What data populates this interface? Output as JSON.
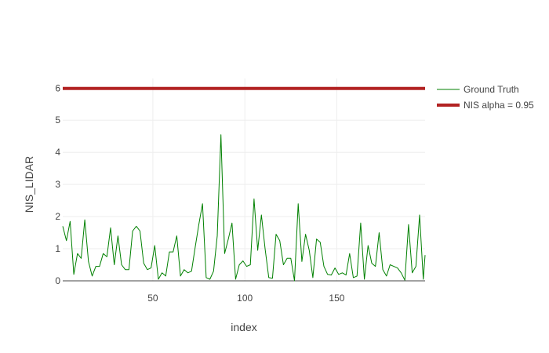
{
  "chart_data": {
    "type": "line",
    "xlabel": "index",
    "ylabel": "NIS_LIDAR",
    "xlim": [
      1,
      198
    ],
    "ylim": [
      0,
      6.3
    ],
    "x_ticks": [
      50,
      100,
      150
    ],
    "y_ticks": [
      0,
      1,
      2,
      3,
      4,
      5,
      6
    ],
    "grid": true,
    "legend_position": "top-right",
    "series": [
      {
        "name": "Ground Truth",
        "color": "#008000",
        "style": "thin-line",
        "x": [
          1,
          3,
          5,
          7,
          9,
          11,
          13,
          15,
          17,
          19,
          21,
          23,
          25,
          27,
          29,
          31,
          33,
          35,
          37,
          39,
          41,
          43,
          45,
          47,
          49,
          51,
          53,
          55,
          57,
          59,
          61,
          63,
          65,
          67,
          69,
          71,
          73,
          75,
          77,
          79,
          81,
          83,
          85,
          87,
          89,
          91,
          93,
          95,
          97,
          99,
          101,
          103,
          105,
          107,
          109,
          111,
          113,
          115,
          117,
          119,
          121,
          123,
          125,
          127,
          129,
          131,
          133,
          135,
          137,
          139,
          141,
          143,
          145,
          147,
          149,
          151,
          153,
          155,
          157,
          159,
          161,
          163,
          165,
          167,
          169,
          171,
          173,
          175,
          177,
          179,
          181,
          183,
          185,
          187,
          189,
          191,
          193,
          195,
          197,
          198
        ],
        "values": [
          1.7,
          1.25,
          1.85,
          0.2,
          0.85,
          0.7,
          1.9,
          0.6,
          0.15,
          0.45,
          0.45,
          0.85,
          0.75,
          1.65,
          0.5,
          1.4,
          0.5,
          0.35,
          0.35,
          1.55,
          1.7,
          1.55,
          0.55,
          0.35,
          0.4,
          1.1,
          0.05,
          0.25,
          0.15,
          0.9,
          0.9,
          1.4,
          0.15,
          0.35,
          0.25,
          0.3,
          1.05,
          1.75,
          2.4,
          0.1,
          0.05,
          0.3,
          1.4,
          4.55,
          0.85,
          1.3,
          1.8,
          0.05,
          0.5,
          0.62,
          0.45,
          0.5,
          2.55,
          0.95,
          2.05,
          1.0,
          0.1,
          0.08,
          1.45,
          1.25,
          0.5,
          0.7,
          0.7,
          0.0,
          2.4,
          0.6,
          1.45,
          0.95,
          0.1,
          1.3,
          1.2,
          0.45,
          0.2,
          0.18,
          0.4,
          0.2,
          0.25,
          0.18,
          0.85,
          0.1,
          0.15,
          1.8,
          0.05,
          1.1,
          0.55,
          0.45,
          1.5,
          0.35,
          0.15,
          0.5,
          0.45,
          0.4,
          0.25,
          0.02,
          1.75,
          0.25,
          0.45,
          2.05,
          0.05,
          0.8
        ]
      },
      {
        "name": "NIS alpha = 0.95",
        "color": "#b22222",
        "style": "thick-line",
        "x": [
          1,
          198
        ],
        "values": [
          5.991,
          5.991
        ]
      }
    ]
  }
}
